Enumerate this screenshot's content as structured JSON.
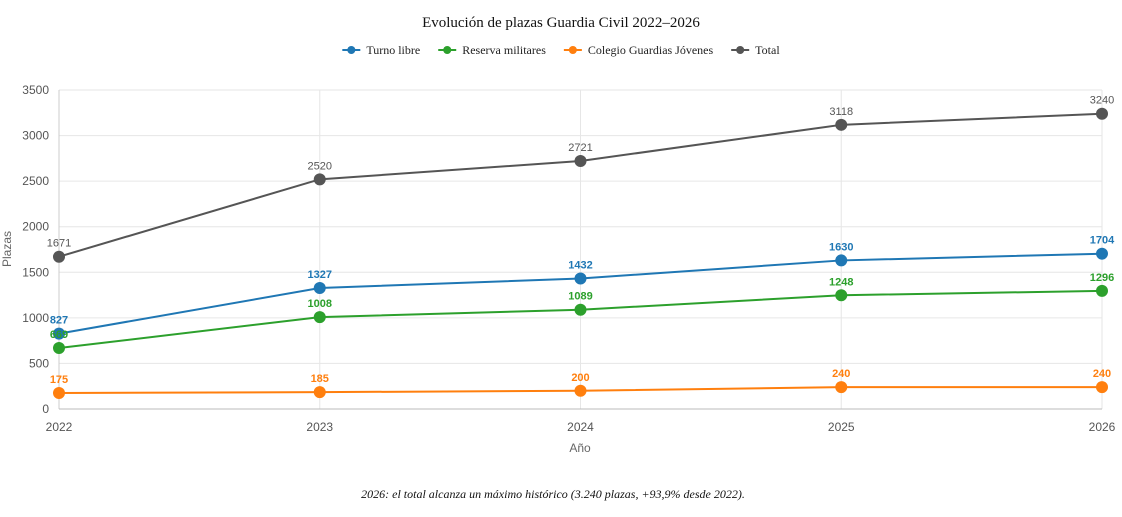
{
  "chart_data": {
    "type": "line",
    "title": "Evolución de plazas Guardia Civil 2022–2026",
    "xlabel": "Año",
    "ylabel": "Plazas",
    "x": [
      "2022",
      "2023",
      "2024",
      "2025",
      "2026"
    ],
    "ylim": [
      0,
      3500
    ],
    "yticks": [
      0,
      500,
      1000,
      1500,
      2000,
      2500,
      3000,
      3500
    ],
    "grid": true,
    "legend_position": "top-center",
    "series": [
      {
        "name": "Turno libre",
        "color": "#1f77b4",
        "values": [
          827,
          1327,
          1432,
          1630,
          1704
        ]
      },
      {
        "name": "Reserva militares",
        "color": "#2ca02c",
        "values": [
          669,
          1008,
          1089,
          1248,
          1296
        ]
      },
      {
        "name": "Colegio Guardias Jóvenes",
        "color": "#ff7f0e",
        "values": [
          175,
          185,
          200,
          240,
          240
        ]
      },
      {
        "name": "Total",
        "color": "#555555",
        "values": [
          1671,
          2520,
          2721,
          3118,
          3240
        ]
      }
    ],
    "footnote": "2026: el total alcanza un máximo histórico (3.240 plazas, +93,9% desde 2022)."
  }
}
